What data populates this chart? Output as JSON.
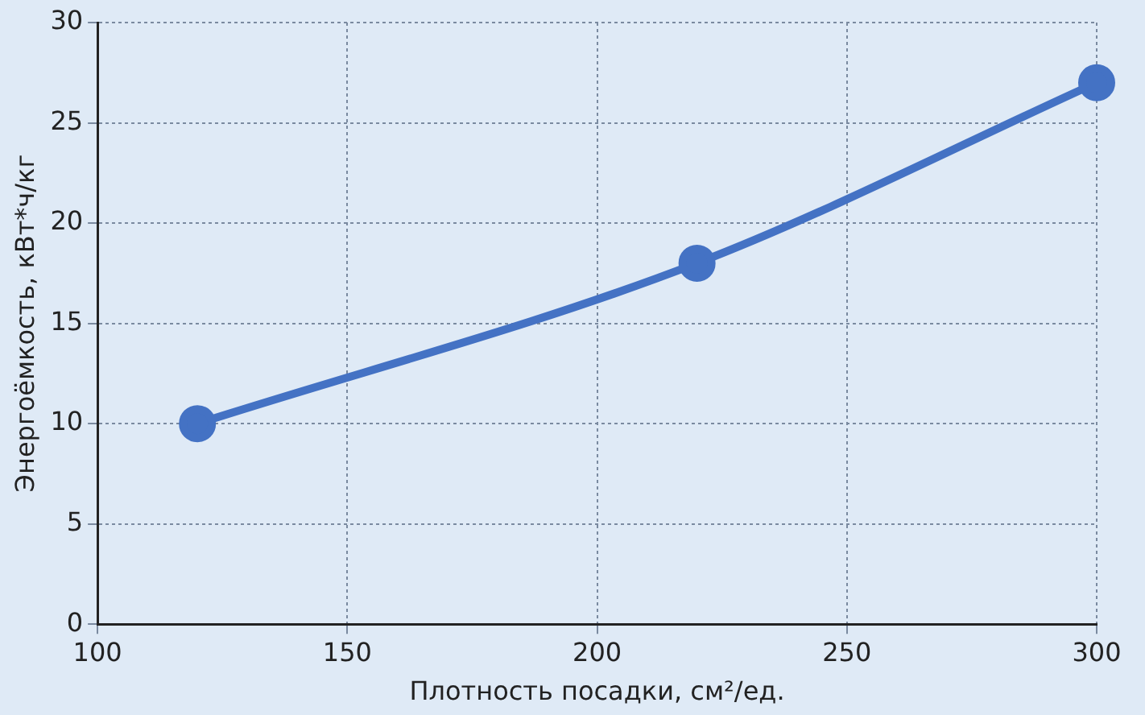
{
  "chart_data": {
    "type": "line",
    "xlabel": "Плотность посадки, см²/ед.",
    "ylabel": "Энергоёмкость, кВт*ч/кг",
    "x": [
      120,
      220,
      300
    ],
    "series": [
      {
        "color": "#4472c4",
        "values": [
          10,
          18,
          27
        ]
      }
    ],
    "xlim": [
      100,
      300
    ],
    "xticks": [
      100,
      150,
      200,
      250,
      300
    ],
    "ylim": [
      0,
      30
    ],
    "yticks": [
      0,
      5,
      10,
      15,
      20,
      25,
      30
    ],
    "grid": true,
    "marker": "circle",
    "line_style": "solid"
  }
}
